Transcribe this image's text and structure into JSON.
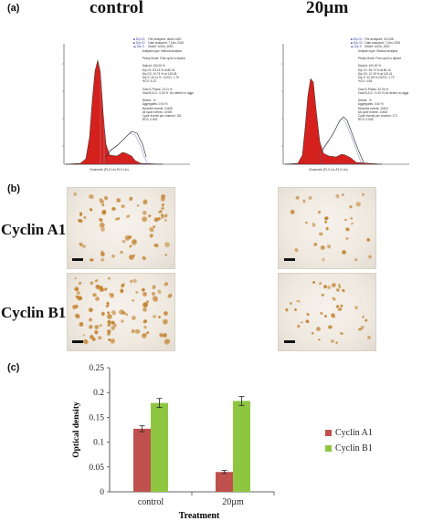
{
  "panels": {
    "a": "(a)",
    "b": "(b)",
    "c": "(c)"
  },
  "columns": {
    "control": "control",
    "treated": "20µm"
  },
  "rows": {
    "cyclin_a1": "Cyclin A1",
    "cyclin_b1": "Cyclin B1"
  },
  "colors": {
    "cyclin_a1": "#c0504d",
    "cyclin_b1": "#8ec642",
    "histogram_fill": "#d4211e"
  },
  "chart_data": {
    "type": "bar",
    "categories": [
      "control",
      "20µm"
    ],
    "series": [
      {
        "name": "Cyclin A1",
        "values": [
          0.127,
          0.04
        ],
        "errors": [
          0.006,
          0.003
        ]
      },
      {
        "name": "Cyclin B1",
        "values": [
          0.179,
          0.183
        ],
        "errors": [
          0.009,
          0.009
        ]
      }
    ],
    "xlabel": "Treatment",
    "ylabel": "Optical density",
    "ylim": [
      0,
      0.25
    ],
    "yticks": [
      "0",
      "0.05",
      "0.1",
      "0.15",
      "0.2",
      "0.25"
    ],
    "grid": false,
    "legend_position": "right"
  }
}
